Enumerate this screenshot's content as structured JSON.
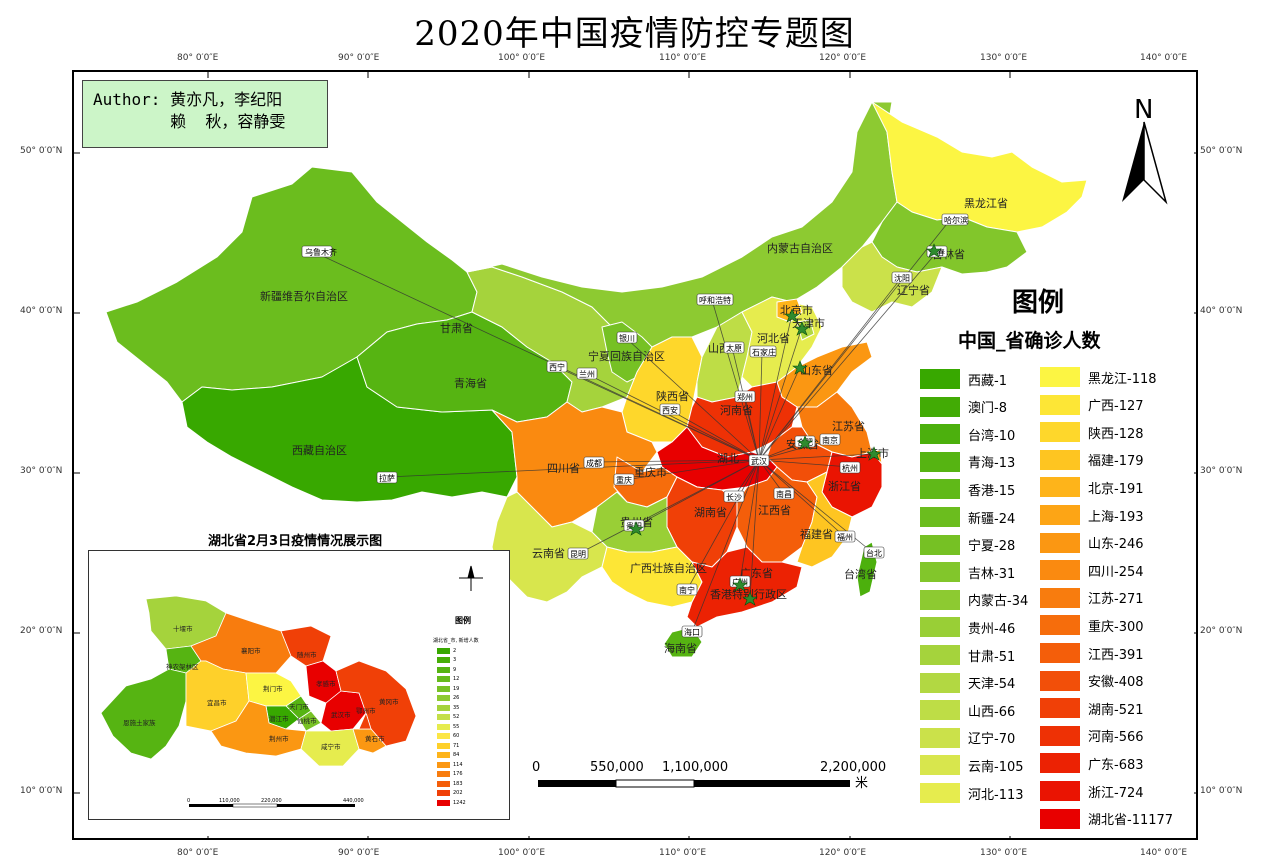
{
  "title": "2020年中国疫情防控专题图",
  "author": {
    "line1": "Author: 黄亦凡，李纪阳",
    "line2": "        赖  秋，容静雯"
  },
  "coords": {
    "top": [
      "80° 0′0″E",
      "90° 0′0″E",
      "100° 0′0″E",
      "110° 0′0″E",
      "120° 0′0″E",
      "130° 0′0″E",
      "140° 0′0″E"
    ],
    "left": [
      "50° 0′0″N",
      "40° 0′0″N",
      "30° 0′0″N",
      "20° 0′0″N",
      "10° 0′0″N"
    ]
  },
  "north_label": "N",
  "legend": {
    "title": "图例",
    "subtitle": "中国_省确诊人数",
    "col1": [
      {
        "label": "西藏-1",
        "color": "#38a800"
      },
      {
        "label": "澳门-8",
        "color": "#42ab05"
      },
      {
        "label": "台湾-10",
        "color": "#4cb00d"
      },
      {
        "label": "青海-13",
        "color": "#56b412"
      },
      {
        "label": "香港-15",
        "color": "#60b918"
      },
      {
        "label": "新疆-24",
        "color": "#6bbd1e"
      },
      {
        "label": "宁夏-28",
        "color": "#76c124"
      },
      {
        "label": "吉林-31",
        "color": "#82c62b"
      },
      {
        "label": "内蒙古-34",
        "color": "#8dca31"
      },
      {
        "label": "贵州-46",
        "color": "#99cf36"
      },
      {
        "label": "甘肃-51",
        "color": "#a5d33c"
      },
      {
        "label": "天津-54",
        "color": "#b2d842"
      },
      {
        "label": "山西-66",
        "color": "#bedd46"
      },
      {
        "label": "辽宁-70",
        "color": "#cbe14a"
      },
      {
        "label": "云南-105",
        "color": "#d8e64d"
      },
      {
        "label": "河北-113",
        "color": "#e6ec4e"
      }
    ],
    "col2": [
      {
        "label": "黑龙江-118",
        "color": "#fcf543"
      },
      {
        "label": "广西-127",
        "color": "#fde636"
      },
      {
        "label": "陕西-128",
        "color": "#fed72b"
      },
      {
        "label": "福建-179",
        "color": "#fec521"
      },
      {
        "label": "北京-191",
        "color": "#feb41a"
      },
      {
        "label": "上海-193",
        "color": "#fda515"
      },
      {
        "label": "山东-246",
        "color": "#fb9712"
      },
      {
        "label": "四川-254",
        "color": "#fa8a10"
      },
      {
        "label": "江苏-271",
        "color": "#f87c0e"
      },
      {
        "label": "重庆-300",
        "color": "#f66d0c"
      },
      {
        "label": "江西-391",
        "color": "#f45e0a"
      },
      {
        "label": "安徽-408",
        "color": "#f24f09"
      },
      {
        "label": "湖南-521",
        "color": "#f04007"
      },
      {
        "label": "河南-566",
        "color": "#ee3105"
      },
      {
        "label": "广东-683",
        "color": "#ec2203"
      },
      {
        "label": "浙江-724",
        "color": "#ea1402"
      },
      {
        "label": "湖北省-11177",
        "color": "#e80000"
      }
    ]
  },
  "regions": [
    "新疆维吾尔自治区",
    "西藏自治区",
    "青海省",
    "甘肃省",
    "内蒙古自治区",
    "黑龙江省",
    "吉林省",
    "辽宁省",
    "宁夏回族自治区",
    "陕西省",
    "山西省",
    "河北省",
    "北京市",
    "天津市",
    "山东省",
    "河南省",
    "江苏省",
    "安徽省",
    "湖北",
    "上海市",
    "四川省",
    "重庆市",
    "浙江省",
    "湖南省",
    "江西省",
    "贵州省",
    "云南省",
    "广西壮族自治区",
    "广东省",
    "福建省",
    "台湾省",
    "海南省",
    "香港特别行政区"
  ],
  "capitals": [
    "乌鲁木齐",
    "拉萨",
    "西宁",
    "兰州",
    "银川",
    "呼和浩特",
    "哈尔滨",
    "长春",
    "沈阳",
    "太原",
    "石家庄",
    "郑州",
    "西安",
    "成都",
    "重庆",
    "贵阳",
    "昆明",
    "南宁",
    "长沙",
    "南昌",
    "合肥",
    "南京",
    "杭州",
    "福州",
    "武汉",
    "广州",
    "海口",
    "台北"
  ],
  "inset": {
    "title": "湖北省2月3日疫情情况展示图",
    "legend_title": "图例",
    "legend_sub": "湖北省_市, 新增人数",
    "legend_items": [
      {
        "label": "2",
        "color": "#38a800"
      },
      {
        "label": "3",
        "color": "#47ae07"
      },
      {
        "label": "9",
        "color": "#56b412"
      },
      {
        "label": "12",
        "color": "#66bb1c"
      },
      {
        "label": "19",
        "color": "#78c226"
      },
      {
        "label": "26",
        "color": "#8dca31"
      },
      {
        "label": "35",
        "color": "#a5d33c"
      },
      {
        "label": "52",
        "color": "#c4df48"
      },
      {
        "label": "55",
        "color": "#e6ec4e"
      },
      {
        "label": "60",
        "color": "#fce646"
      },
      {
        "label": "71",
        "color": "#fed02a"
      },
      {
        "label": "84",
        "color": "#feb41a"
      },
      {
        "label": "114",
        "color": "#fb9712"
      },
      {
        "label": "176",
        "color": "#f87c0e"
      },
      {
        "label": "183",
        "color": "#f45e0a"
      },
      {
        "label": "202",
        "color": "#f04007"
      },
      {
        "label": "1242",
        "color": "#e80000"
      }
    ],
    "cities": [
      "十堰市",
      "神农架林区",
      "襄阳市",
      "随州市",
      "孝感市",
      "恩施土家族",
      "宜昌市",
      "荆门市",
      "天门市",
      "潜江市",
      "仙桃市",
      "武汉市",
      "黄冈市",
      "荆州市",
      "咸宁市",
      "黄石市",
      "鄂州市"
    ],
    "scale": [
      "0",
      "110,000",
      "220,000",
      "440,000"
    ]
  },
  "scalebar": {
    "labels": [
      "0",
      "550,000",
      "1,100,000",
      "2,200,000"
    ],
    "unit": "米"
  }
}
